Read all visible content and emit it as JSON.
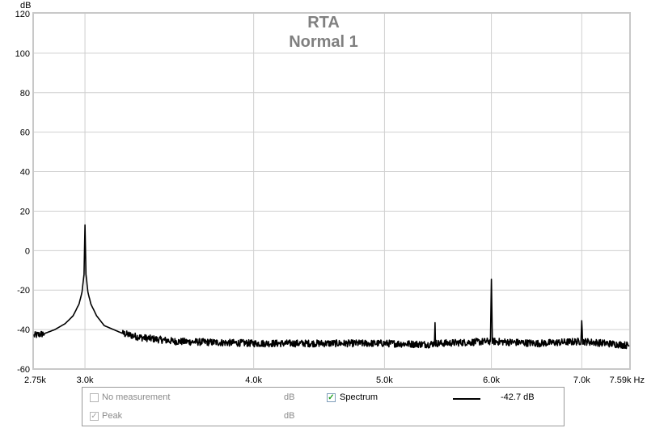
{
  "chart_data": {
    "type": "line",
    "title": "RTA",
    "subtitle": "Normal 1",
    "ylabel": "dB",
    "xunit": "Hz",
    "xscale": "log",
    "xlim": [
      2750,
      7590
    ],
    "ylim": [
      -60,
      120
    ],
    "yticks": [
      120,
      100,
      80,
      60,
      40,
      20,
      0,
      -20,
      -40,
      -60
    ],
    "xticks": [
      {
        "value": 2750,
        "label": "2.75k"
      },
      {
        "value": 3000,
        "label": "3.0k"
      },
      {
        "value": 4000,
        "label": "4.0k"
      },
      {
        "value": 5000,
        "label": "5.0k"
      },
      {
        "value": 6000,
        "label": "6.0k"
      },
      {
        "value": 7000,
        "label": "7.0k"
      },
      {
        "value": 7590,
        "label": "7.59k Hz"
      }
    ],
    "grid": true,
    "series": [
      {
        "name": "Spectrum",
        "color": "#000000",
        "x": [
          2750,
          2800,
          2850,
          2900,
          2940,
          2970,
          2985,
          2995,
          3000,
          3005,
          3015,
          3030,
          3060,
          3100,
          3200,
          3300,
          3500,
          4000,
          4500,
          5000,
          5400,
          5445,
          5450,
          5455,
          5500,
          5990,
          6000,
          6010,
          6500,
          6990,
          7000,
          7010,
          7300,
          7590
        ],
        "y": [
          -43,
          -42,
          -40,
          -37,
          -33,
          -27,
          -21,
          -12,
          13,
          -12,
          -21,
          -27,
          -33,
          -38,
          -42,
          -44,
          -46,
          -47,
          -47,
          -47,
          -47.5,
          -47,
          -36.5,
          -47,
          -47,
          -46,
          -14.5,
          -46,
          -47,
          -46,
          -35.5,
          -46,
          -47,
          -48
        ]
      }
    ]
  },
  "legend": {
    "no_measurement_label": "No measurement",
    "no_measurement_unit": "dB",
    "peak_label": "Peak",
    "peak_unit": "dB",
    "spectrum_label": "Spectrum",
    "spectrum_value": "-42.7 dB",
    "checkmark": "✓"
  }
}
